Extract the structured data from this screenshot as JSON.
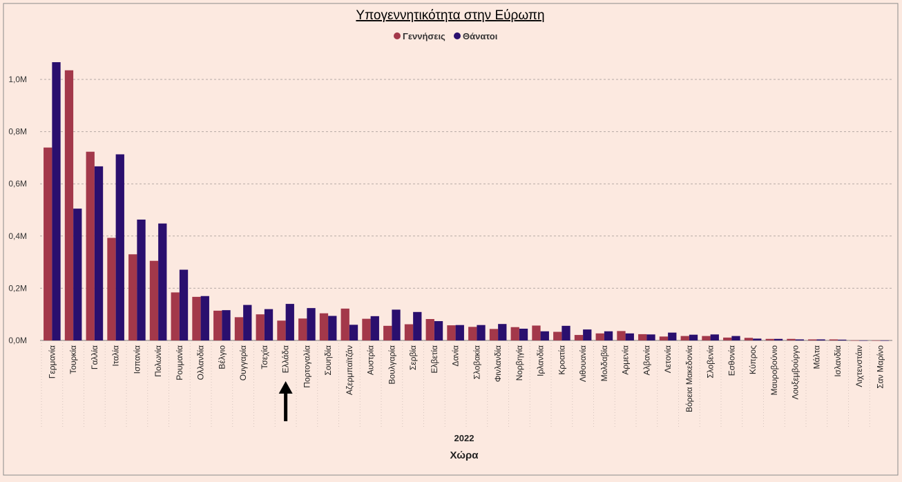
{
  "chart_data": {
    "type": "bar",
    "title": "Υπογεννητικότητα στην Εύρωπη",
    "xlabel": "Χώρα",
    "x_group_label": "2022",
    "ylabel": "",
    "ylim": [
      0,
      1100000
    ],
    "yticks": [
      0,
      200000,
      400000,
      600000,
      800000,
      1000000
    ],
    "ytick_labels": [
      "0,0M",
      "0,2M",
      "0,4M",
      "0,6M",
      "0,8M",
      "1,0M"
    ],
    "grid": true,
    "legend_position": "top-center",
    "annotation": "arrow pointing to Ελλάδα",
    "highlight_category": "Ελλάδα",
    "categories": [
      "Γερμανία",
      "Τουρκία",
      "Γαλλία",
      "Ιταλία",
      "Ισπανία",
      "Πολωνία",
      "Ρουμανία",
      "Ολλανδία",
      "Βέλγιο",
      "Ουγγαρία",
      "Τσεχία",
      "Ελλάδα",
      "Πορτογαλία",
      "Σουηδία",
      "Αζερμπαϊτζάν",
      "Αυστρία",
      "Βουλγαρία",
      "Σερβία",
      "Ελβετία",
      "Δανία",
      "Σλοβακία",
      "Φινλανδία",
      "Νορβηγία",
      "Ιρλανδία",
      "Κροατία",
      "Λιθουανία",
      "Μολδαβία",
      "Αρμενία",
      "Αλβανία",
      "Λετονία",
      "Βόρεια Μακεδονία",
      "Σλοβενία",
      "Εσθονία",
      "Κύπρος",
      "Μαυροβούνιο",
      "Λουξεμβούργο",
      "Μάλτα",
      "Ισλανδία",
      "Λιχτενστάιν",
      "Σαν Μαρίνο"
    ],
    "series": [
      {
        "name": "Γεννήσεις",
        "color": "#a3384a",
        "values": [
          739000,
          1035000,
          723000,
          393000,
          330000,
          305000,
          184000,
          167000,
          114000,
          89000,
          100000,
          76000,
          84000,
          104000,
          122000,
          83000,
          56000,
          62000,
          82000,
          58000,
          52000,
          44000,
          51000,
          57000,
          33000,
          21000,
          27000,
          36000,
          24000,
          15000,
          17000,
          17000,
          11000,
          10000,
          6000,
          6000,
          4000,
          4000,
          400,
          200
        ]
      },
      {
        "name": "Θάνατοι",
        "color": "#2a0f6e",
        "values": [
          1066000,
          505000,
          667000,
          713000,
          463000,
          448000,
          271000,
          170000,
          116000,
          136000,
          120000,
          140000,
          124000,
          94000,
          60000,
          93000,
          118000,
          109000,
          74000,
          59000,
          59000,
          63000,
          45000,
          35000,
          56000,
          42000,
          35000,
          27000,
          23000,
          30000,
          22000,
          23000,
          17000,
          7000,
          6000,
          4000,
          4000,
          3000,
          300,
          200
        ]
      }
    ]
  }
}
